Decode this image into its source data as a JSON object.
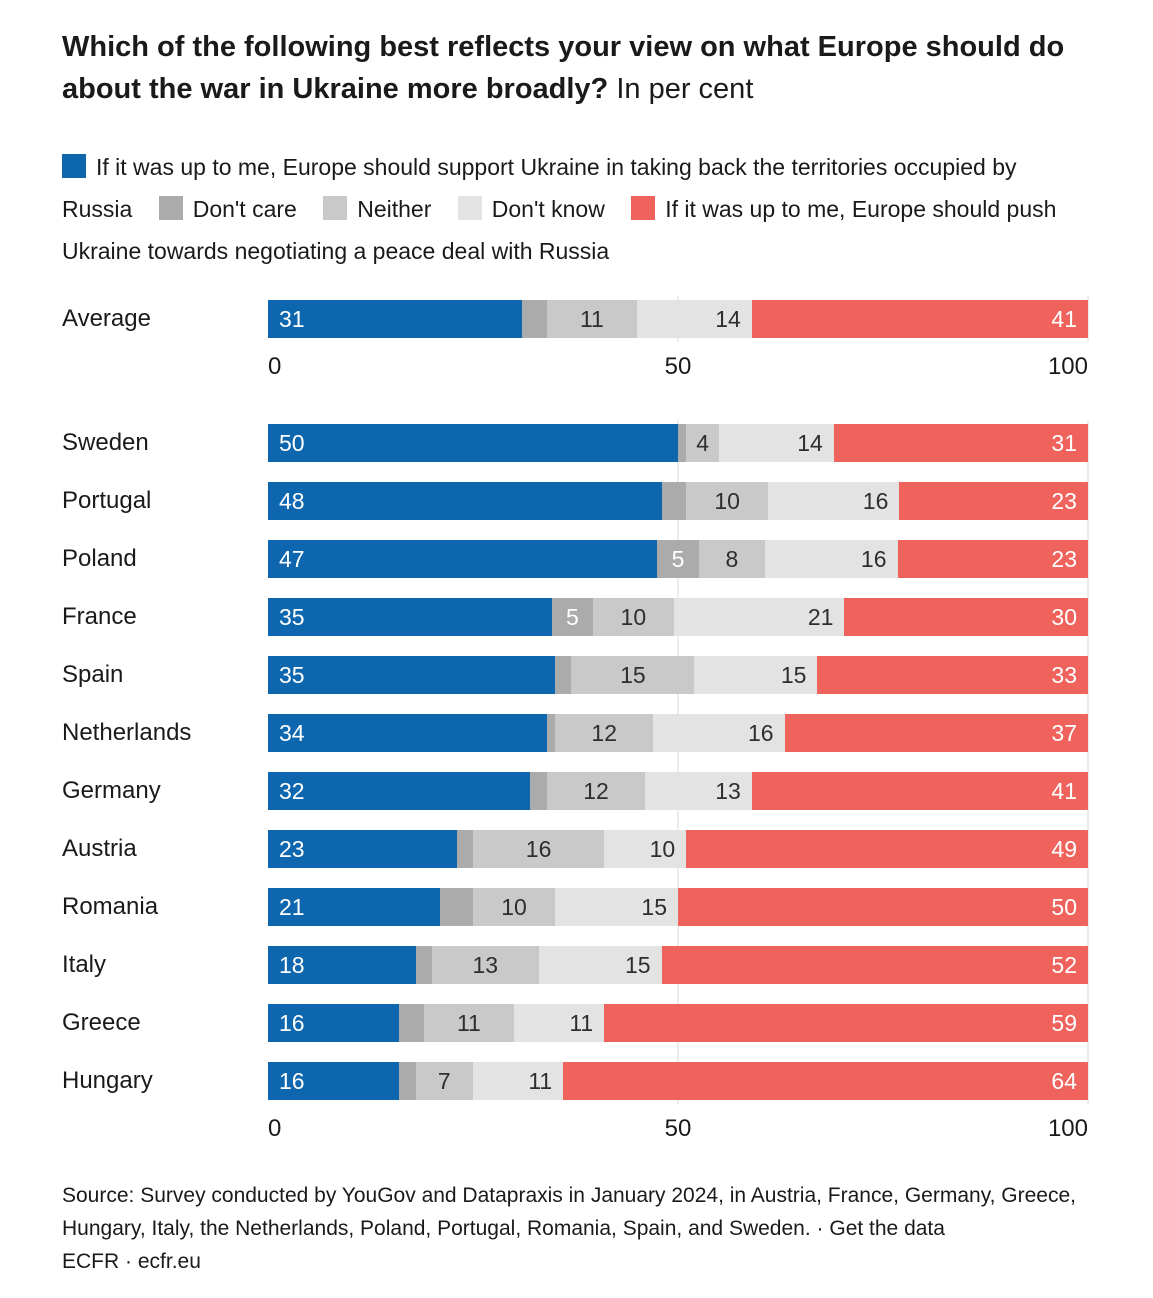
{
  "chart_data": {
    "type": "bar",
    "orientation": "horizontal",
    "stacked": true,
    "title": "Which of the following best reflects your view on what Europe should do about the war in Ukraine more broadly?",
    "subtitle": "In per cent",
    "unit": "per cent",
    "xlim": [
      0,
      100
    ],
    "ticks": [
      0,
      50,
      100
    ],
    "grid": "faint vertical gridlines at 50 and 100",
    "legend_position": "top",
    "categories": [
      "Average",
      "Sweden",
      "Portugal",
      "Poland",
      "France",
      "Spain",
      "Netherlands",
      "Germany",
      "Austria",
      "Romania",
      "Italy",
      "Greece",
      "Hungary"
    ],
    "series": [
      {
        "name": "If it was up to me, Europe should support Ukraine in taking back the territories occupied by Russia",
        "color": "#0e67ae",
        "values": [
          31,
          50,
          48,
          47,
          35,
          35,
          34,
          32,
          23,
          21,
          18,
          16,
          16
        ]
      },
      {
        "name": "Don't care",
        "color": "#ababab",
        "min_label": 5,
        "values": [
          3,
          1,
          3,
          5,
          5,
          2,
          1,
          2,
          2,
          4,
          2,
          3,
          2
        ],
        "note": "values below 5 are unlabeled in the chart, estimated as remainder to 100"
      },
      {
        "name": "Neither",
        "color": "#c9c9c9",
        "values": [
          11,
          4,
          10,
          8,
          10,
          15,
          12,
          12,
          16,
          10,
          13,
          11,
          7
        ]
      },
      {
        "name": "Don't know",
        "color": "#e3e3e3",
        "values": [
          14,
          14,
          16,
          16,
          21,
          15,
          16,
          13,
          10,
          15,
          15,
          11,
          11
        ]
      },
      {
        "name": "If it was up to me, Europe should push Ukraine towards negotiating a peace deal with Russia",
        "color": "#f0635d",
        "values": [
          41,
          31,
          23,
          23,
          30,
          33,
          37,
          41,
          49,
          50,
          52,
          59,
          64
        ]
      }
    ]
  },
  "footer": {
    "source": "Source: Survey conducted by YouGov and Datapraxis in January 2024, in Austria, France, Germany, Greece, Hungary, Italy, the Netherlands, Poland, Portugal, Romania, Spain, and Sweden.",
    "separator": "·",
    "get_data": "Get the data",
    "brand": "ECFR",
    "site": "ecfr.eu"
  }
}
